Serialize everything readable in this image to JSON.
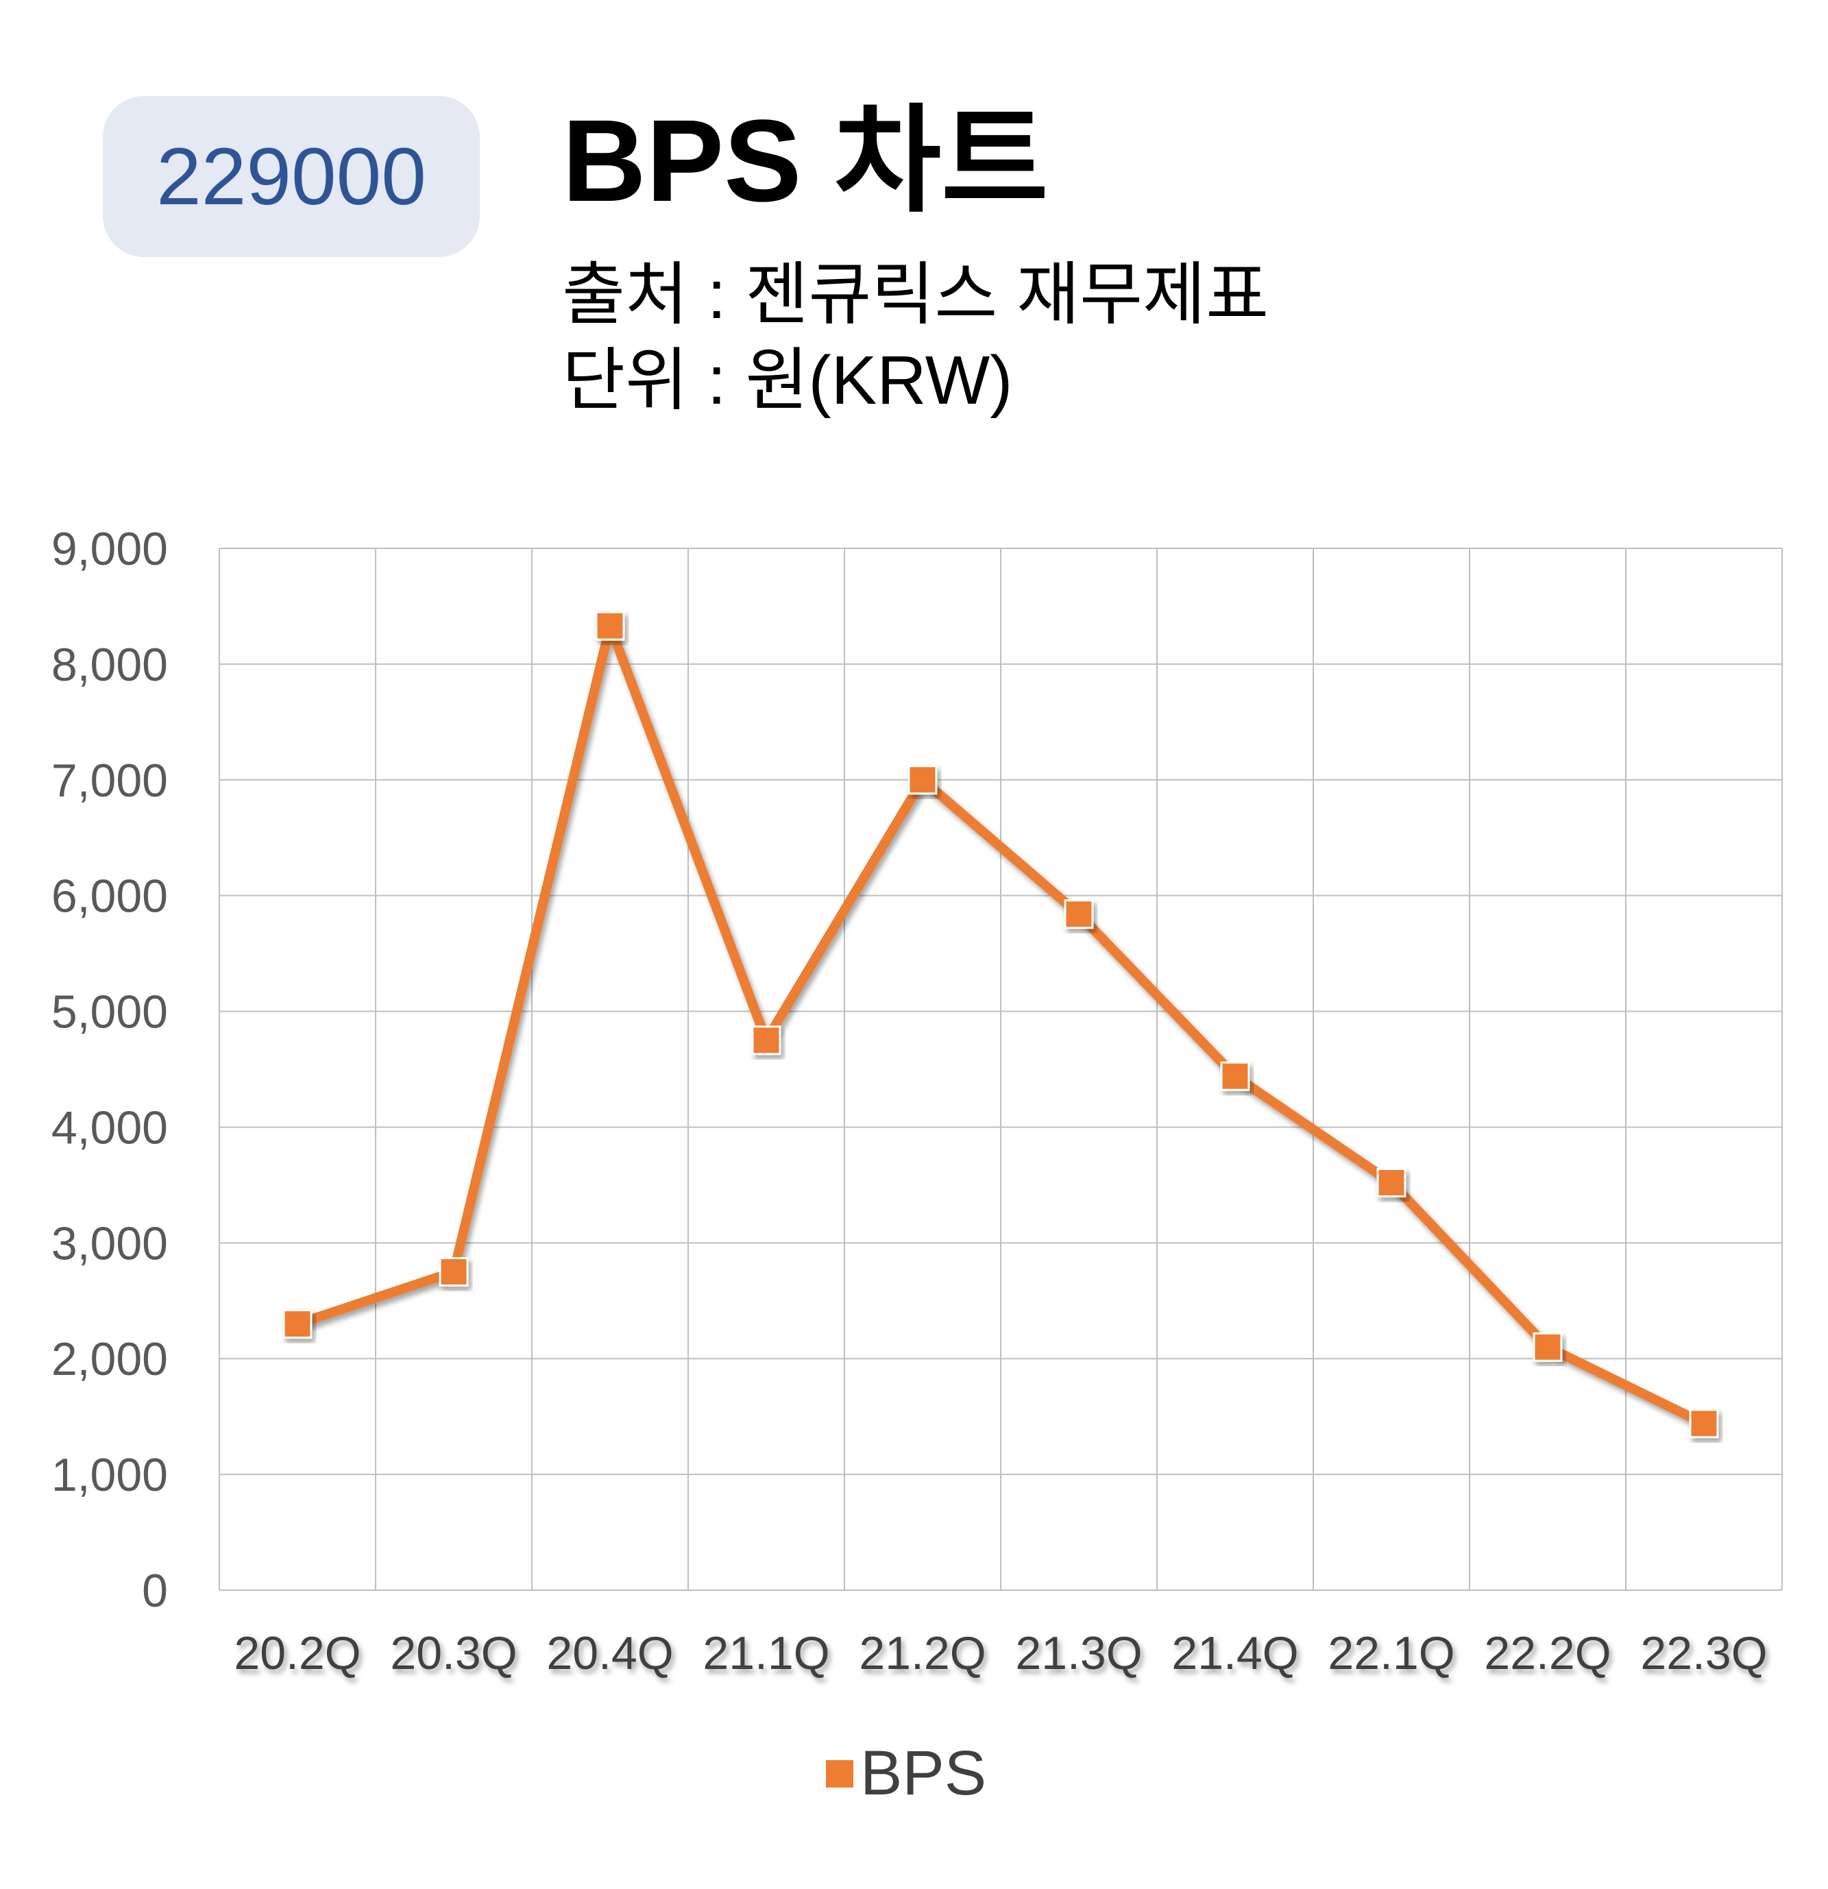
{
  "header": {
    "stock_code": "229000",
    "title": "BPS 차트",
    "source": "출처 : 젠큐릭스 재무제표",
    "unit": "단위 : 원(KRW)"
  },
  "colors": {
    "line": "#ed7d31",
    "badge_bg": "#e4e9f3",
    "badge_text": "#2f5496",
    "grid": "#bfbfbf"
  },
  "chart_data": {
    "type": "line",
    "categories": [
      "20.2Q",
      "20.3Q",
      "20.4Q",
      "21.1Q",
      "21.2Q",
      "21.3Q",
      "21.4Q",
      "22.1Q",
      "22.2Q",
      "22.3Q"
    ],
    "series": [
      {
        "name": "BPS",
        "values": [
          2300,
          2750,
          8330,
          4750,
          7000,
          5840,
          4440,
          3520,
          2100,
          1440
        ]
      }
    ],
    "yticks": [
      "0",
      "1,000",
      "2,000",
      "3,000",
      "4,000",
      "5,000",
      "6,000",
      "7,000",
      "8,000",
      "9,000"
    ],
    "ylim": [
      0,
      9000
    ],
    "grid": true,
    "legend_position": "bottom",
    "marker": "square"
  }
}
